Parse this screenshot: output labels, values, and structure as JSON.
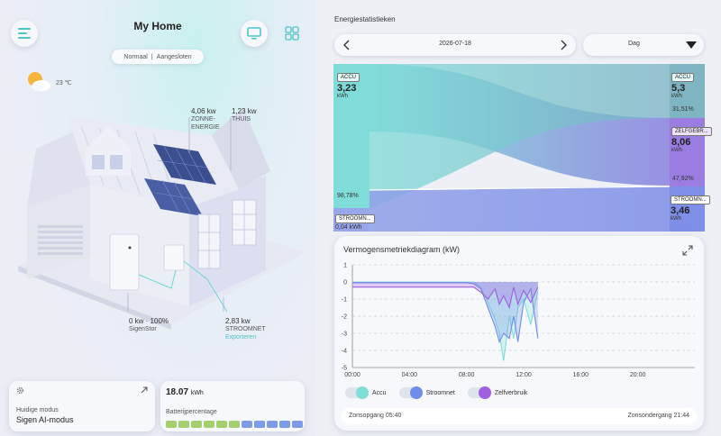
{
  "home": {
    "title": "My Home",
    "status_mode": "Normaal",
    "status_sep": "|",
    "status_conn": "Aangesloten",
    "weather_temp": "23 ℃"
  },
  "flows": {
    "solar_value": "4,06 kw",
    "solar_label_1": "ZONNE-",
    "solar_label_2": "ENERGIE",
    "home_value": "1,23 kw",
    "home_label": "THUIS",
    "battery_value": "0 kw · 100%",
    "battery_label": "SigenStor",
    "grid_value": "2,83 kw",
    "grid_label": "STROOMNET",
    "grid_status": "Exporteren"
  },
  "mode_card": {
    "label": "Huidige modus",
    "value": "Sigen AI-modus"
  },
  "battery_card": {
    "value": "18.07",
    "unit": "kWh",
    "label": "Batterijpercentage",
    "segments_green": 6,
    "segments_blue": 5
  },
  "stats": {
    "title": "Energiestatistieken",
    "date": "2026-07-18",
    "period": "Dag",
    "left": [
      {
        "tag": "ACCU",
        "value": "3,23",
        "unit": "kWh",
        "pct": "98,78%"
      },
      {
        "tag": "STROOMN...",
        "value": "0,04",
        "unit": "kWh"
      }
    ],
    "right": [
      {
        "tag": "ACCU",
        "value": "5,3",
        "unit": "kWh",
        "pct": "31,51%"
      },
      {
        "tag": "ZELFGEBR...",
        "value": "8,06",
        "unit": "kWh",
        "pct": "47,92%"
      },
      {
        "tag": "STROOMN...",
        "value": "3,46",
        "unit": "kWh"
      }
    ]
  },
  "power_chart": {
    "title": "Vermogensmetriekdiagram (kW)",
    "sunrise": "Zonsopgang 05:40",
    "sunset": "Zonsondergang 21:44"
  },
  "chart_data": {
    "type": "area",
    "title": "Vermogensmetriekdiagram (kW)",
    "x_ticks": [
      "00:00",
      "04:00",
      "08:00",
      "12:00",
      "16:00",
      "20:00"
    ],
    "y_ticks": [
      "1",
      "0",
      "-1",
      "-2",
      "-3",
      "-4",
      "-5"
    ],
    "ylim": [
      -5,
      1
    ],
    "xlim_hours": [
      0,
      24
    ],
    "legend_placement": "bottom-left",
    "series": [
      {
        "name": "Accu",
        "color": "#7fded6",
        "x": [
          0,
          1,
          2,
          3,
          4,
          5,
          6,
          7,
          8,
          8.5,
          9,
          9.5,
          10,
          10.3,
          10.6,
          11,
          11.3,
          11.6,
          12,
          12.5,
          13
        ],
        "y": [
          0,
          0,
          0,
          0,
          0,
          0,
          0,
          0,
          0,
          0,
          -0.3,
          -1.2,
          -2.2,
          -3.0,
          -4.6,
          -2.0,
          -3.3,
          -1.5,
          -1.0,
          -2.5,
          -0.5
        ]
      },
      {
        "name": "Stroomnet",
        "color": "#6f8ce8",
        "x": [
          0,
          1,
          2,
          3,
          4,
          5,
          6,
          7,
          8,
          8.5,
          9,
          9.5,
          10,
          10.3,
          10.6,
          11,
          11.3,
          11.6,
          12,
          12.5,
          13
        ],
        "y": [
          -0.05,
          -0.05,
          -0.05,
          -0.05,
          -0.05,
          -0.05,
          -0.05,
          -0.05,
          -0.05,
          -0.1,
          -0.4,
          -1.5,
          -2.6,
          -3.5,
          -3.0,
          -3.3,
          -2.0,
          -3.5,
          -1.2,
          -0.4,
          -3.3
        ]
      },
      {
        "name": "Zelfverbruik",
        "color": "#a05ee0",
        "x": [
          0,
          1,
          2,
          3,
          4,
          5,
          6,
          7,
          8,
          8.5,
          9,
          9.5,
          10,
          10.3,
          10.6,
          11,
          11.3,
          11.6,
          12,
          12.5,
          13
        ],
        "y": [
          -0.3,
          -0.3,
          -0.3,
          -0.3,
          -0.3,
          -0.3,
          -0.3,
          -0.3,
          -0.3,
          -0.3,
          -0.6,
          -1.0,
          -0.4,
          -1.3,
          -0.8,
          -1.5,
          -0.3,
          -1.3,
          -0.5,
          -1.2,
          -0.3
        ]
      }
    ]
  }
}
